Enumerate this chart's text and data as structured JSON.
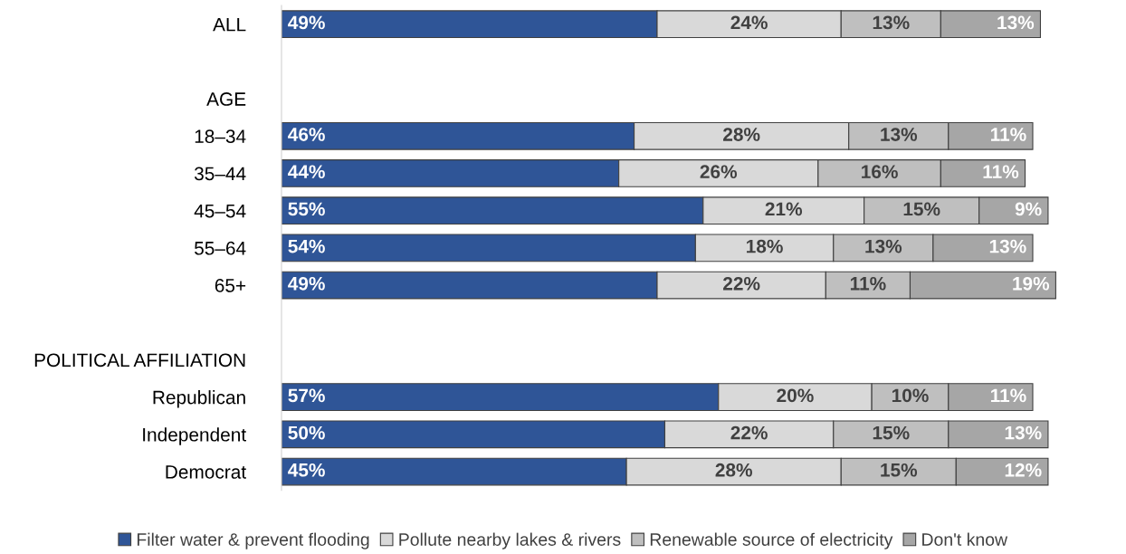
{
  "chart_data": {
    "type": "bar",
    "orientation": "horizontal",
    "stacked": true,
    "legend": "bottom",
    "tick_labels": "y",
    "categories": [
      "ALL",
      null,
      "AGE",
      "18–34",
      "35–44",
      "45–54",
      "55–64",
      "65+",
      null,
      "POLITICAL AFFILIATION",
      "Republican",
      "Independent",
      "Democrat"
    ],
    "series": [
      {
        "name": "Filter water & prevent flooding",
        "color": "#2f5597",
        "values": [
          49,
          null,
          null,
          46,
          44,
          55,
          54,
          49,
          null,
          null,
          57,
          50,
          45
        ],
        "value_labels": [
          "49%",
          null,
          null,
          "46%",
          "44%",
          "55%",
          "54%",
          "49%",
          null,
          null,
          "57%",
          "50%",
          "45%"
        ]
      },
      {
        "name": "Pollute nearby lakes & rivers",
        "color": "#d9d9d9",
        "values": [
          24,
          null,
          null,
          28,
          26,
          21,
          18,
          22,
          null,
          null,
          20,
          22,
          28
        ],
        "value_labels": [
          "24%",
          null,
          null,
          "28%",
          "26%",
          "21%",
          "18%",
          "22%",
          null,
          null,
          "20%",
          "22%",
          "28%"
        ]
      },
      {
        "name": "Renewable source of electricity",
        "color": "#bfbfbf",
        "values": [
          13,
          null,
          null,
          13,
          16,
          15,
          13,
          11,
          null,
          null,
          10,
          15,
          15
        ],
        "value_labels": [
          "13%",
          null,
          null,
          "13%",
          "16%",
          "15%",
          "13%",
          "11%",
          null,
          null,
          "10%",
          "15%",
          "15%"
        ]
      },
      {
        "name": "Don't know",
        "color": "#a6a6a6",
        "values": [
          13,
          null,
          null,
          11,
          11,
          9,
          13,
          19,
          null,
          null,
          11,
          13,
          12
        ],
        "value_labels": [
          "13%",
          null,
          null,
          "11%",
          "11%",
          "9%",
          "13%",
          "19%",
          null,
          null,
          "11%",
          "13%",
          "12%"
        ]
      }
    ]
  }
}
